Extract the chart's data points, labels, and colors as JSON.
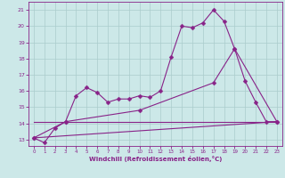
{
  "xlabel": "Windchill (Refroidissement éolien,°C)",
  "bg_color": "#cce8e8",
  "grid_color": "#aacccc",
  "line_color": "#882288",
  "xlim": [
    -0.5,
    23.5
  ],
  "ylim": [
    12.6,
    21.5
  ],
  "xticks": [
    0,
    1,
    2,
    3,
    4,
    5,
    6,
    7,
    8,
    9,
    10,
    11,
    12,
    13,
    14,
    15,
    16,
    17,
    18,
    19,
    20,
    21,
    22,
    23
  ],
  "yticks": [
    13,
    14,
    15,
    16,
    17,
    18,
    19,
    20,
    21
  ],
  "curve1_x": [
    0,
    1,
    2,
    3,
    4,
    5,
    6,
    7,
    8,
    9,
    10,
    11,
    12,
    13,
    14,
    15,
    16,
    17,
    18,
    19,
    20,
    21,
    22,
    23
  ],
  "curve1_y": [
    13.1,
    12.8,
    13.7,
    14.1,
    15.7,
    16.2,
    15.9,
    15.3,
    15.5,
    15.5,
    15.7,
    15.6,
    16.0,
    18.1,
    20.0,
    19.9,
    20.2,
    21.0,
    20.3,
    18.6,
    16.6,
    15.3,
    14.1,
    14.1
  ],
  "curve2_x": [
    0,
    23
  ],
  "curve2_y": [
    13.1,
    14.1
  ],
  "curve3_x": [
    0,
    3,
    10,
    17,
    19,
    23
  ],
  "curve3_y": [
    13.1,
    14.1,
    14.8,
    16.5,
    18.6,
    14.1
  ],
  "curve4_x": [
    0,
    23
  ],
  "curve4_y": [
    14.1,
    14.1
  ],
  "marker": "D",
  "markersize": 2.5,
  "lw": 0.8
}
